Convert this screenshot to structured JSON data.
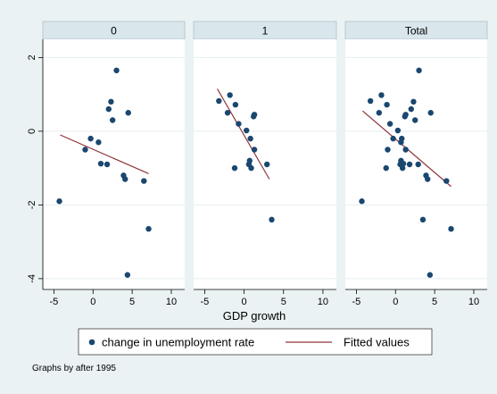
{
  "chart_data": {
    "type": "scatter",
    "xlabel": "GDP growth",
    "ylabel": "",
    "x_ticks": [
      -5,
      0,
      5,
      10
    ],
    "y_ticks": [
      -4,
      -2,
      0,
      2
    ],
    "xlim": [
      -5.5,
      10.8
    ],
    "ylim": [
      -4.1,
      2.3
    ],
    "note": "Graphs by after 1995",
    "legend": {
      "position": "bottom",
      "entries": [
        "change in unemployment rate",
        "Fitted values"
      ]
    },
    "colors": {
      "marker": "#1a476f",
      "fit": "#90353b",
      "panel_bg": "#ffffff",
      "outer_bg": "#eaf2f3",
      "strip_bg": "#d9e6eb",
      "grid": "#e8eef1"
    },
    "panels": [
      {
        "label": "0",
        "points": [
          [
            3.0,
            1.65
          ],
          [
            2.3,
            0.8
          ],
          [
            2.0,
            0.6
          ],
          [
            4.5,
            0.5
          ],
          [
            2.5,
            0.3
          ],
          [
            -0.3,
            -0.2
          ],
          [
            0.7,
            -0.3
          ],
          [
            -1.0,
            -0.5
          ],
          [
            1.0,
            -0.88
          ],
          [
            1.8,
            -0.9
          ],
          [
            3.9,
            -1.2
          ],
          [
            4.1,
            -1.3
          ],
          [
            6.5,
            -1.35
          ],
          [
            -4.3,
            -1.9
          ],
          [
            7.1,
            -2.65
          ],
          [
            4.4,
            -3.9
          ]
        ],
        "fit": [
          [
            -4.2,
            -0.1
          ],
          [
            7.1,
            -1.15
          ]
        ]
      },
      {
        "label": "1",
        "points": [
          [
            -3.2,
            0.82
          ],
          [
            -1.8,
            0.98
          ],
          [
            -1.1,
            0.72
          ],
          [
            -2.1,
            0.5
          ],
          [
            1.2,
            0.4
          ],
          [
            1.3,
            0.45
          ],
          [
            -0.7,
            0.2
          ],
          [
            0.3,
            0.02
          ],
          [
            0.8,
            -0.2
          ],
          [
            1.3,
            -0.5
          ],
          [
            0.7,
            -0.8
          ],
          [
            0.6,
            -0.9
          ],
          [
            2.9,
            -0.9
          ],
          [
            -1.2,
            -1.0
          ],
          [
            0.9,
            -1.0
          ],
          [
            3.5,
            -2.4
          ]
        ],
        "fit": [
          [
            -3.4,
            1.15
          ],
          [
            3.2,
            -1.3
          ]
        ]
      },
      {
        "label": "Total",
        "points": [
          [
            3.0,
            1.65
          ],
          [
            -1.8,
            0.98
          ],
          [
            -3.2,
            0.82
          ],
          [
            2.3,
            0.8
          ],
          [
            -1.1,
            0.72
          ],
          [
            2.0,
            0.6
          ],
          [
            -2.1,
            0.5
          ],
          [
            4.5,
            0.5
          ],
          [
            1.2,
            0.4
          ],
          [
            1.3,
            0.45
          ],
          [
            2.5,
            0.3
          ],
          [
            -0.7,
            0.2
          ],
          [
            0.3,
            0.02
          ],
          [
            -0.3,
            -0.2
          ],
          [
            0.8,
            -0.2
          ],
          [
            0.7,
            -0.3
          ],
          [
            1.3,
            -0.5
          ],
          [
            -1.0,
            -0.5
          ],
          [
            0.7,
            -0.8
          ],
          [
            0.6,
            -0.9
          ],
          [
            1.0,
            -0.88
          ],
          [
            1.8,
            -0.9
          ],
          [
            2.9,
            -0.9
          ],
          [
            -1.2,
            -1.0
          ],
          [
            0.9,
            -1.0
          ],
          [
            3.9,
            -1.2
          ],
          [
            4.1,
            -1.3
          ],
          [
            6.5,
            -1.35
          ],
          [
            -4.3,
            -1.9
          ],
          [
            3.5,
            -2.4
          ],
          [
            7.1,
            -2.65
          ],
          [
            4.4,
            -3.9
          ]
        ],
        "fit": [
          [
            -4.2,
            0.55
          ],
          [
            7.1,
            -1.5
          ]
        ]
      }
    ]
  }
}
